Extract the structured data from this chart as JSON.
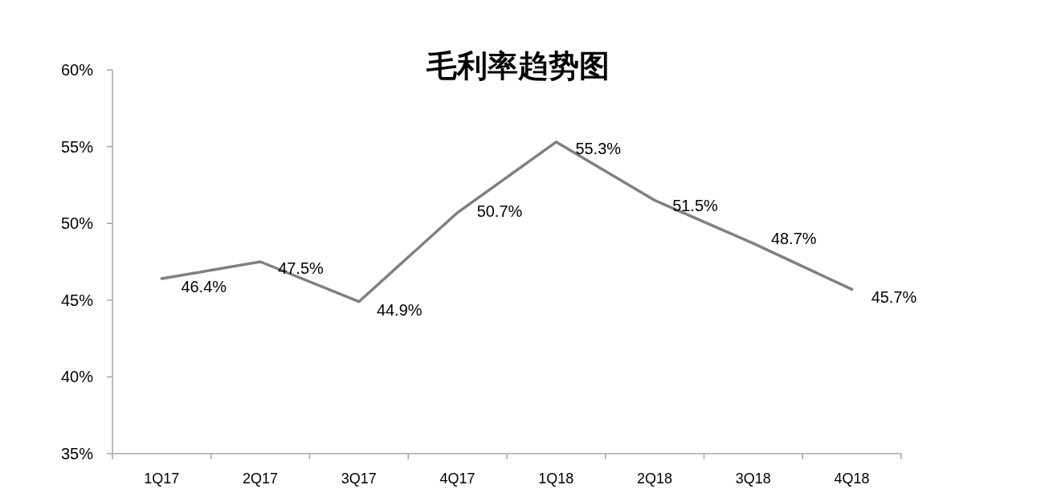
{
  "chart_data": {
    "type": "line",
    "title": "毛利率趋势图",
    "categories": [
      "1Q17",
      "2Q17",
      "3Q17",
      "4Q17",
      "1Q18",
      "2Q18",
      "3Q18",
      "4Q18"
    ],
    "series": [
      {
        "color": "#808080",
        "values": [
          46.4,
          47.5,
          44.9,
          50.7,
          55.3,
          51.5,
          48.7,
          45.7
        ],
        "value_labels": [
          "46.4%",
          "47.5%",
          "44.9%",
          "50.7%",
          "55.3%",
          "51.5%",
          "48.7%",
          "45.7%"
        ]
      }
    ],
    "ylim": [
      35,
      60
    ],
    "yticks": [
      {
        "value": 35,
        "label": "35%"
      },
      {
        "value": 40,
        "label": "40%"
      },
      {
        "value": 45,
        "label": "45%"
      },
      {
        "value": 50,
        "label": "50%"
      },
      {
        "value": 55,
        "label": "55%"
      },
      {
        "value": 60,
        "label": "60%"
      }
    ],
    "grid": false,
    "marker": "none",
    "line_style": "solid"
  }
}
